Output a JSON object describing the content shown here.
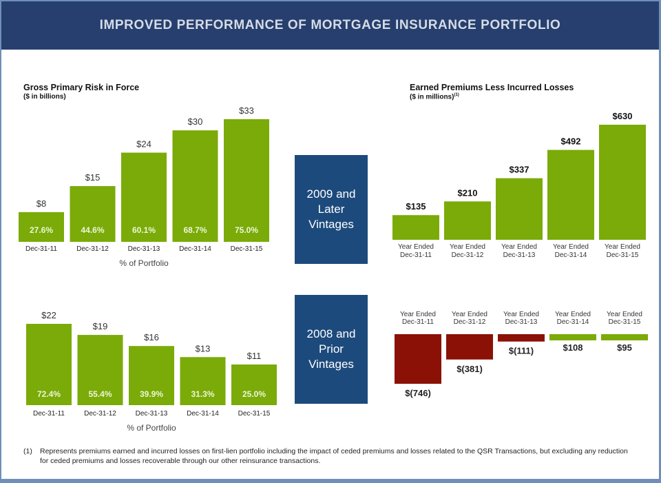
{
  "header": {
    "title": "IMPROVED PERFORMANCE  OF MORTGAGE INSURANCE PORTFOLIO"
  },
  "colors": {
    "bar_green": "#7aab08",
    "bar_red": "#8b1107",
    "vintage_box": "#1c4a7c",
    "header_bg": "#263f6e"
  },
  "vintages": {
    "later": "2009 and Later Vintages",
    "later_lines": [
      "2009 and",
      "Later",
      "Vintages"
    ],
    "prior": "2008 and Prior Vintages",
    "prior_lines": [
      "2008 and",
      "Prior",
      "Vintages"
    ]
  },
  "left_panel": {
    "title": "Gross  Primary Risk  in Force",
    "subtitle": "($ in billions)"
  },
  "right_panel": {
    "title": "Earned Premiums Less  Incurred Losses",
    "subtitle": "($ in millions)",
    "subtitle_footnote": "(1)"
  },
  "footnote": {
    "number": "(1)",
    "text": "Represents premiums earned and incurred losses on first-lien portfolio including the impact of ceded premiums and losses related to the QSR Transactions, but excluding any reduction for ceded premiums and losses recoverable through our other reinsurance transactions."
  },
  "chart_data": [
    {
      "id": "risk-later",
      "type": "bar",
      "title": "Gross  Primary Risk  in Force",
      "subtitle": "($ in billions)",
      "group": "2009 and Later Vintages",
      "categories": [
        "Dec-31-11",
        "Dec-31-12",
        "Dec-31-13",
        "Dec-31-14",
        "Dec-31-15"
      ],
      "values": [
        8,
        15,
        24,
        30,
        33
      ],
      "value_labels": [
        "$8",
        "$15",
        "$24",
        "$30",
        "$33"
      ],
      "inner_labels": [
        "27.6%",
        "44.6%",
        "60.1%",
        "68.7%",
        "75.0%"
      ],
      "xlabel": "% of Portfolio",
      "ylim": [
        0,
        33
      ]
    },
    {
      "id": "risk-prior",
      "type": "bar",
      "group": "2008 and Prior Vintages",
      "categories": [
        "Dec-31-11",
        "Dec-31-12",
        "Dec-31-13",
        "Dec-31-14",
        "Dec-31-15"
      ],
      "values": [
        22,
        19,
        16,
        13,
        11
      ],
      "value_labels": [
        "$22",
        "$19",
        "$16",
        "$13",
        "$11"
      ],
      "inner_labels": [
        "72.4%",
        "55.4%",
        "39.9%",
        "31.3%",
        "25.0%"
      ],
      "xlabel": "% of Portfolio",
      "ylim": [
        0,
        22
      ]
    },
    {
      "id": "premiums-later",
      "type": "bar",
      "title": "Earned Premiums Less  Incurred Losses",
      "subtitle": "($ in millions)(1)",
      "group": "2009 and Later Vintages",
      "categories": [
        "Year Ended Dec-31-11",
        "Year Ended Dec-31-12",
        "Year Ended Dec-31-13",
        "Year Ended Dec-31-14",
        "Year Ended Dec-31-15"
      ],
      "category_lines": [
        [
          "Year Ended",
          "Dec-31-11"
        ],
        [
          "Year Ended",
          "Dec-31-12"
        ],
        [
          "Year Ended",
          "Dec-31-13"
        ],
        [
          "Year Ended",
          "Dec-31-14"
        ],
        [
          "Year Ended",
          "Dec-31-15"
        ]
      ],
      "values": [
        135,
        210,
        337,
        492,
        630
      ],
      "value_labels": [
        "$135",
        "$210",
        "$337",
        "$492",
        "$630"
      ],
      "ylim": [
        0,
        630
      ]
    },
    {
      "id": "premiums-prior",
      "type": "bar",
      "group": "2008 and Prior Vintages",
      "categories": [
        "Year Ended Dec-31-11",
        "Year Ended Dec-31-12",
        "Year Ended Dec-31-13",
        "Year Ended Dec-31-14",
        "Year Ended Dec-31-15"
      ],
      "category_lines": [
        [
          "Year Ended",
          "Dec-31-11"
        ],
        [
          "Year Ended",
          "Dec-31-12"
        ],
        [
          "Year Ended",
          "Dec-31-13"
        ],
        [
          "Year Ended",
          "Dec-31-14"
        ],
        [
          "Year Ended",
          "Dec-31-15"
        ]
      ],
      "values": [
        -746,
        -381,
        -111,
        108,
        95
      ],
      "value_labels": [
        "$(746)",
        "$(381)",
        "$(111)",
        "$108",
        "$95"
      ],
      "ylim": [
        -746,
        108
      ]
    }
  ]
}
